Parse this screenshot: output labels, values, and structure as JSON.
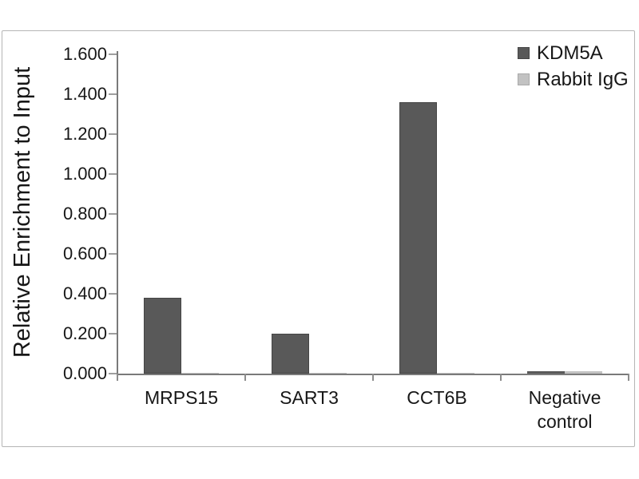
{
  "figure": {
    "background": "#ffffff",
    "frame_border_color": "#b5b5b5"
  },
  "chart_data": {
    "type": "bar",
    "title": "",
    "xlabel": "",
    "ylabel": "Relative Enrichment to Input",
    "categories": [
      "MRPS15",
      "SART3",
      "CCT6B",
      "Negative control"
    ],
    "series": [
      {
        "name": "KDM5A",
        "color": "#595959",
        "edge_color": "#454545",
        "values": [
          0.38,
          0.2,
          1.36,
          0.01
        ]
      },
      {
        "name": "Rabbit IgG",
        "color": "#c2c2c2",
        "edge_color": "#a9a9a9",
        "values": [
          0.005,
          0.005,
          0.005,
          0.01
        ]
      }
    ],
    "ylim": [
      0,
      1.6
    ],
    "ytick_step": 0.2,
    "ytick_labels": [
      "0.000",
      "0.200",
      "0.400",
      "0.600",
      "0.800",
      "1.000",
      "1.200",
      "1.400",
      "1.600"
    ],
    "grid": false,
    "legend_position": "top-right",
    "axis_line_color": "#7a7a7a",
    "tick_mark_color": "#9e9e9e",
    "text_color": "#171717"
  }
}
